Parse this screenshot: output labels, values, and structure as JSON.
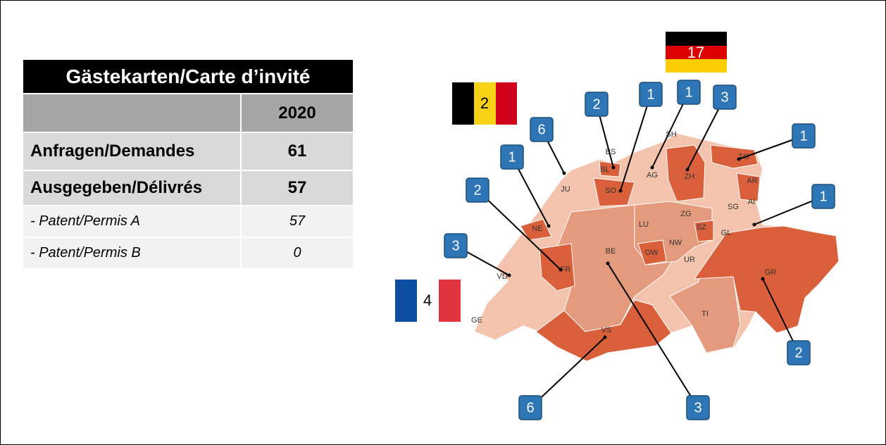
{
  "table": {
    "title": "Gästekarten/Carte d’invité",
    "year": "2020",
    "rows": [
      [
        "Anfragen/Demandes",
        61
      ],
      [
        "Ausgegeben/Délivrés",
        57
      ],
      [
        "- Patent/Permis A",
        57
      ],
      [
        "- Patent/Permis B",
        0
      ]
    ]
  },
  "map": {
    "cantons": [
      "SH",
      "BS",
      "BL",
      "AG",
      "ZH",
      "TG",
      "AR",
      "AI",
      "SG",
      "JU",
      "SO",
      "NE",
      "LU",
      "ZG",
      "SZ",
      "GL",
      "OW",
      "NW",
      "UR",
      "BE",
      "FR",
      "VD",
      "GE",
      "VS",
      "TI",
      "GR"
    ],
    "callouts": [
      6,
      2,
      1,
      1,
      3,
      1,
      1,
      1,
      2,
      3,
      2,
      6,
      3
    ],
    "flags": [
      2,
      17,
      4
    ]
  }
}
